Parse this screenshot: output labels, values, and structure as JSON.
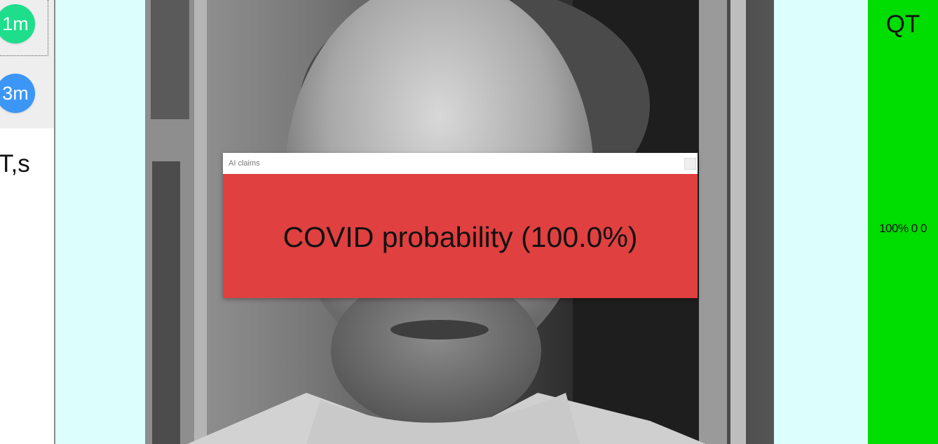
{
  "left_panel": {
    "buttons": [
      {
        "label": "1m",
        "color": "#1ede8c"
      },
      {
        "label": "3m",
        "color": "#3c96f6"
      }
    ],
    "ts_label": "T,s"
  },
  "dialog": {
    "title": "AI claims",
    "message": "COVID probability (100.0%)",
    "background_color": "#e04040"
  },
  "right_panel": {
    "title": "QT",
    "stats": "100% 0 0",
    "background_color": "#00dd00"
  },
  "center": {
    "background_color": "#dcfefd",
    "camera_feed": "grayscale-face-image"
  }
}
